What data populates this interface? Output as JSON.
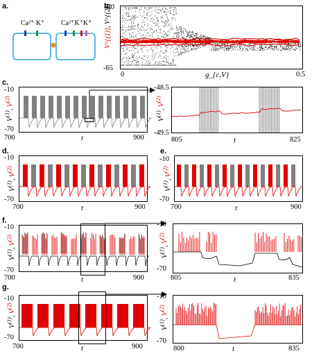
{
  "panels": {
    "a": {
      "letter": "a.",
      "left_cell_label": "Ca²⁺  K⁺",
      "right_cell_label": "Ca²⁺K⁺K⁺"
    },
    "b": {
      "letter": "b.",
      "y_top": "-20",
      "y_bottom": "-65",
      "x_left": "0",
      "x_right": "0.5",
      "x_label": "g_{c,V}",
      "y_label_1": "V^{(1)}",
      "y_label_2": "V^{(2)}"
    },
    "c": {
      "letter": "c.",
      "left": {
        "y_top": "-10",
        "y_bottom": "-70",
        "x_left": "700",
        "x_right": "900",
        "x_label": "t"
      },
      "right": {
        "y_top": "-48.5",
        "y_bottom": "-49.5",
        "x_left": "805",
        "x_right": "825",
        "x_label": "t"
      }
    },
    "d": {
      "letter": "d.",
      "y_top": "-10",
      "y_bottom": "-70",
      "x_left": "700",
      "x_right": "900",
      "x_label": "t"
    },
    "e": {
      "letter": "e.",
      "y_top": "-10",
      "y_bottom": "-70",
      "x_left": "700",
      "x_right": "900",
      "x_label": "t"
    },
    "f": {
      "letter": "f.",
      "left": {
        "y_top": "-10",
        "y_bottom": "-70",
        "x_left": "700",
        "x_right": "900",
        "x_label": "t"
      },
      "right": {
        "y_top": "-10",
        "y_bottom": "-70",
        "x_left": "805",
        "x_right": "835",
        "x_label": "t"
      }
    },
    "g": {
      "letter": "g.",
      "left": {
        "y_top": "-10",
        "y_bottom": "-70",
        "x_left": "700",
        "x_right": "900",
        "x_label": "t"
      },
      "right": {
        "y_top": "-10",
        "y_bottom": "-70",
        "x_left": "800",
        "x_right": "835",
        "x_label": "t"
      }
    }
  },
  "y_label_pair": {
    "v1": "V",
    "v1_sup": "(1)",
    "v2": "V",
    "v2_sup": "(2)"
  },
  "colors": {
    "red": "#e00000",
    "gray": "#808080",
    "black": "#000000",
    "cell_border": "#2aa0d8",
    "gap_junction": "#f08a24"
  },
  "chart_data": [
    {
      "panel": "b",
      "type": "scatter",
      "xlim": [
        0,
        0.5
      ],
      "ylim": [
        -65,
        -20
      ],
      "series": [
        {
          "color": "black"
        },
        {
          "color": "red"
        }
      ]
    },
    {
      "panel": "c-left",
      "type": "line",
      "xlim": [
        700,
        900
      ],
      "ylim": [
        -70,
        -10
      ]
    },
    {
      "panel": "c-right",
      "type": "line",
      "xlim": [
        805,
        825
      ],
      "ylim": [
        -49.5,
        -48.5
      ]
    },
    {
      "panel": "d",
      "type": "line",
      "xlim": [
        700,
        900
      ],
      "ylim": [
        -70,
        -10
      ]
    },
    {
      "panel": "e",
      "type": "line",
      "xlim": [
        700,
        900
      ],
      "ylim": [
        -70,
        -10
      ]
    },
    {
      "panel": "f-left",
      "type": "line",
      "xlim": [
        700,
        900
      ],
      "ylim": [
        -70,
        -10
      ]
    },
    {
      "panel": "f-right",
      "type": "line",
      "xlim": [
        805,
        835
      ],
      "ylim": [
        -70,
        -10
      ]
    },
    {
      "panel": "g-left",
      "type": "line",
      "xlim": [
        700,
        900
      ],
      "ylim": [
        -70,
        -10
      ]
    },
    {
      "panel": "g-right",
      "type": "line",
      "xlim": [
        800,
        835
      ],
      "ylim": [
        -70,
        -10
      ]
    }
  ]
}
